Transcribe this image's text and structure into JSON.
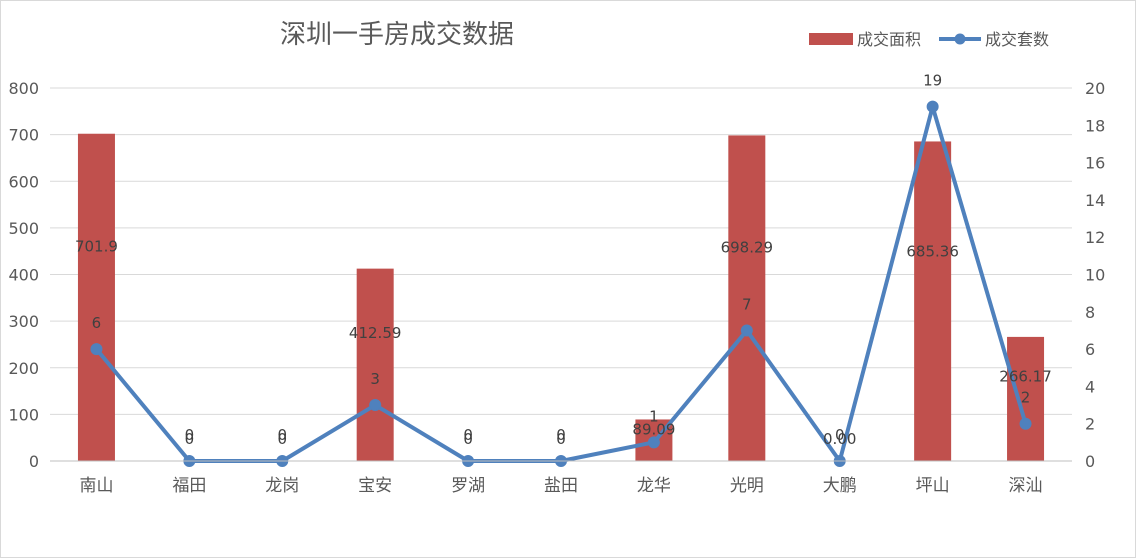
{
  "chart_data": {
    "type": "bar",
    "title": "深圳一手房成交数据",
    "categories": [
      "南山",
      "福田",
      "龙岗",
      "宝安",
      "罗湖",
      "盐田",
      "龙华",
      "光明",
      "大鹏",
      "坪山",
      "深汕"
    ],
    "series": [
      {
        "name": "成交面积",
        "type": "bar",
        "axis": "left",
        "color": "#c0504d",
        "values": [
          701.9,
          0,
          0,
          412.59,
          0,
          0,
          89.09,
          698.29,
          0.0,
          685.36,
          266.17
        ],
        "labels": [
          "701.9",
          "0",
          "0",
          "412.59",
          "0",
          "0",
          "89.09",
          "698.29",
          "0.00",
          "685.36",
          "266.17"
        ]
      },
      {
        "name": "成交套数",
        "type": "line",
        "axis": "right",
        "color": "#4f81bd",
        "values": [
          6,
          0,
          0,
          3,
          0,
          0,
          1,
          7,
          0,
          19,
          2
        ],
        "labels": [
          "6",
          "0",
          "0",
          "3",
          "0",
          "0",
          "1",
          "7",
          "0",
          "19",
          "2"
        ]
      }
    ],
    "y_left": {
      "min": 0,
      "max": 800,
      "ticks": [
        "0",
        "100",
        "200",
        "300",
        "400",
        "500",
        "600",
        "700",
        "800"
      ]
    },
    "y_right": {
      "min": 0,
      "max": 20,
      "ticks": [
        "0",
        "2",
        "4",
        "6",
        "8",
        "10",
        "12",
        "14",
        "16",
        "18",
        "20"
      ]
    },
    "grid": true,
    "legend_position": "top-right",
    "gridline_color": "#d9d9d9"
  }
}
